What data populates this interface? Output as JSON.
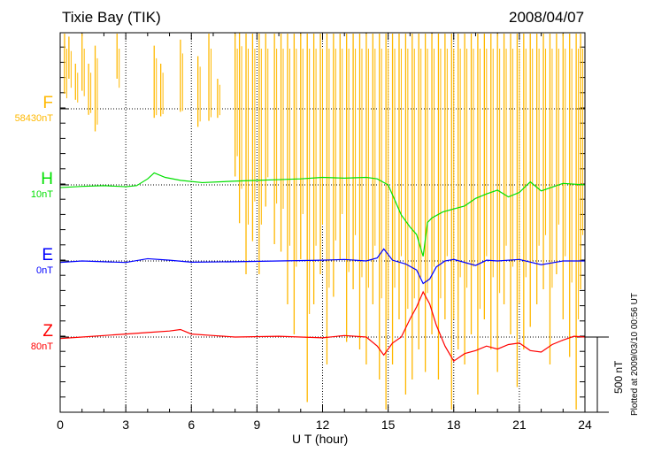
{
  "chart_data": {
    "type": "line",
    "title": "Tixie Bay (TIK)",
    "date": "2008/04/07",
    "xlabel": "U T (hour)",
    "xlim": [
      0,
      24
    ],
    "xticks": [
      "0",
      "3",
      "6",
      "9",
      "12",
      "15",
      "18",
      "21",
      "24"
    ],
    "scale_bar": "500 nT",
    "plotted": "Plotted at 2009/03/10 00:56 UT",
    "series": [
      {
        "name": "F",
        "offset": "58430nT",
        "color": "#ffb800",
        "spikes": [
          [
            0.2,
            500,
            100
          ],
          [
            0.4,
            480,
            200
          ],
          [
            0.7,
            300,
            60
          ],
          [
            1.0,
            500,
            120
          ],
          [
            1.3,
            300,
            -40
          ],
          [
            1.6,
            420,
            -150
          ],
          [
            2.6,
            500,
            200
          ],
          [
            4.3,
            420,
            -60
          ],
          [
            4.6,
            300,
            -50
          ],
          [
            5.5,
            460,
            -20
          ],
          [
            6.3,
            350,
            -120
          ],
          [
            6.8,
            500,
            -80
          ],
          [
            7.2,
            200,
            -60
          ],
          [
            8.0,
            500,
            -450
          ],
          [
            8.2,
            520,
            -760
          ],
          [
            8.5,
            500,
            -1100
          ],
          [
            8.8,
            500,
            -880
          ],
          [
            9.1,
            500,
            -1100
          ],
          [
            9.4,
            500,
            -650
          ],
          [
            9.8,
            500,
            -900
          ],
          [
            10.1,
            500,
            -950
          ],
          [
            10.4,
            500,
            -1300
          ],
          [
            10.7,
            500,
            -1500
          ],
          [
            11.0,
            500,
            -1000
          ],
          [
            11.3,
            500,
            -1950
          ],
          [
            11.6,
            500,
            -1300
          ],
          [
            11.9,
            500,
            -1100
          ],
          [
            12.2,
            500,
            -1700
          ],
          [
            12.5,
            500,
            -1250
          ],
          [
            12.8,
            500,
            -1000
          ],
          [
            13.1,
            500,
            -1550
          ],
          [
            13.4,
            500,
            -1200
          ],
          [
            13.7,
            500,
            -1600
          ],
          [
            14.0,
            500,
            -1700
          ],
          [
            14.3,
            500,
            -1300
          ],
          [
            14.6,
            500,
            -1800
          ],
          [
            14.9,
            500,
            -2000
          ],
          [
            15.2,
            500,
            -1700
          ],
          [
            15.5,
            500,
            -1400
          ],
          [
            15.8,
            500,
            -1900
          ],
          [
            16.1,
            500,
            -1800
          ],
          [
            16.4,
            500,
            -1600
          ],
          [
            16.7,
            500,
            -1750
          ],
          [
            17.0,
            500,
            -1500
          ],
          [
            17.3,
            500,
            -1800
          ],
          [
            17.6,
            500,
            -1400
          ],
          [
            17.9,
            500,
            -2000
          ],
          [
            18.2,
            500,
            -1600
          ],
          [
            18.5,
            500,
            -1700
          ],
          [
            18.8,
            500,
            -1500
          ],
          [
            19.1,
            500,
            -1900
          ],
          [
            19.4,
            500,
            -1400
          ],
          [
            19.7,
            500,
            -1600
          ],
          [
            20.0,
            500,
            -1750
          ],
          [
            20.3,
            500,
            -1300
          ],
          [
            20.6,
            500,
            -1500
          ],
          [
            20.9,
            500,
            -1850
          ],
          [
            21.2,
            500,
            -1600
          ],
          [
            21.5,
            500,
            -1450
          ],
          [
            21.8,
            500,
            -1300
          ],
          [
            22.1,
            500,
            -1200
          ],
          [
            22.4,
            500,
            -1700
          ],
          [
            22.7,
            500,
            -1100
          ],
          [
            23.0,
            500,
            -1400
          ],
          [
            23.3,
            500,
            -1650
          ],
          [
            23.6,
            500,
            -2000
          ],
          [
            23.8,
            500,
            -1200
          ]
        ]
      },
      {
        "name": "H",
        "offset": "10nT",
        "color": "#00e000",
        "x": [
          0,
          1,
          2,
          3,
          3.5,
          4,
          4.3,
          4.8,
          5.5,
          6.5,
          8,
          9,
          10,
          11,
          12,
          13,
          14,
          14.5,
          15,
          15.3,
          15.6,
          16,
          16.3,
          16.6,
          16.8,
          17,
          17.5,
          18,
          18.5,
          19,
          19.5,
          20,
          20.5,
          21,
          21.5,
          22,
          23,
          24
        ],
        "y": [
          -18,
          -10,
          -5,
          -12,
          -5,
          40,
          80,
          50,
          30,
          15,
          25,
          30,
          35,
          40,
          50,
          45,
          50,
          40,
          0,
          -100,
          -200,
          -280,
          -330,
          -475,
          -250,
          -220,
          -180,
          -160,
          -140,
          -90,
          -60,
          -35,
          -80,
          -50,
          20,
          -40,
          10,
          0
        ]
      },
      {
        "name": "E",
        "offset": "0nT",
        "color": "#0000ff",
        "x": [
          0,
          1,
          2,
          3,
          4,
          5,
          6,
          8,
          10,
          12,
          13,
          14,
          14.5,
          14.8,
          15.2,
          15.8,
          16.3,
          16.6,
          16.9,
          17.2,
          17.6,
          18,
          19,
          19.5,
          20,
          21,
          22,
          23,
          24
        ],
        "y": [
          -10,
          0,
          -5,
          -10,
          15,
          5,
          -8,
          -5,
          0,
          5,
          10,
          0,
          20,
          80,
          5,
          -20,
          -60,
          -150,
          -120,
          -40,
          0,
          10,
          -30,
          5,
          0,
          10,
          -25,
          0,
          0
        ]
      },
      {
        "name": "Z",
        "offset": "80nT",
        "color": "#ff0000",
        "x": [
          0,
          1,
          2,
          3,
          4,
          5,
          5.5,
          6,
          7,
          8,
          10,
          12,
          13,
          14,
          14.5,
          14.8,
          15.2,
          15.6,
          16,
          16.3,
          16.6,
          16.9,
          17.2,
          17.6,
          18,
          18.5,
          19,
          19.5,
          20,
          20.5,
          21,
          21.5,
          22,
          22.5,
          23,
          23.5,
          24
        ],
        "y": [
          -10,
          0,
          10,
          20,
          30,
          40,
          50,
          20,
          10,
          0,
          5,
          -5,
          10,
          0,
          -60,
          -120,
          -40,
          0,
          120,
          200,
          300,
          220,
          80,
          -60,
          -160,
          -110,
          -90,
          -60,
          -80,
          -50,
          -40,
          -90,
          -100,
          -50,
          -20,
          5,
          0
        ]
      }
    ]
  }
}
